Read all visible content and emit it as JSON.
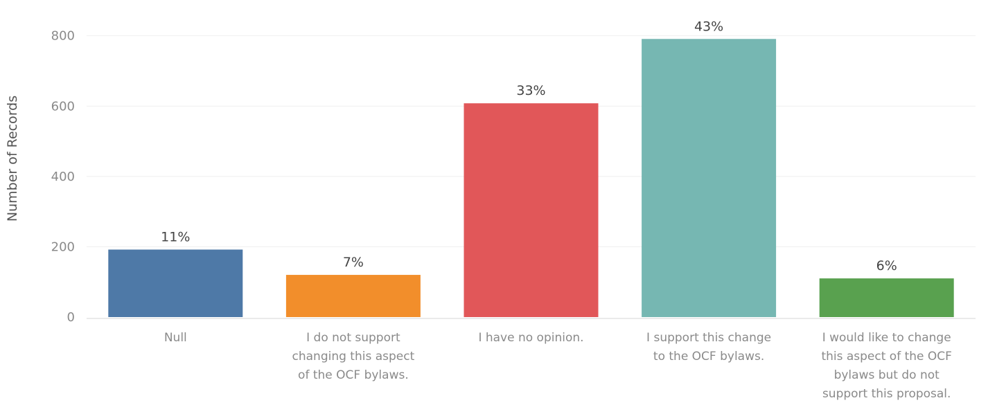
{
  "chart_data": {
    "type": "bar",
    "title": "",
    "xlabel": "",
    "ylabel": "Number of Records",
    "ylim": [
      0,
      800
    ],
    "yticks": [
      0,
      200,
      400,
      600,
      800
    ],
    "grid": true,
    "categories": [
      [
        "Null"
      ],
      [
        "I do not support",
        "changing this aspect",
        "of the OCF bylaws."
      ],
      [
        "I have no opinion."
      ],
      [
        "I support this change",
        "to the OCF bylaws."
      ],
      [
        "I would like to change",
        "this aspect of the OCF",
        "bylaws but do not",
        "support this proposal."
      ]
    ],
    "values": [
      192,
      120,
      608,
      791,
      110
    ],
    "data_labels": [
      "11%",
      "7%",
      "33%",
      "43%",
      "6%"
    ],
    "colors": [
      "#4e79a7",
      "#f28e2b",
      "#e15759",
      "#76b7b2",
      "#59a14f"
    ]
  }
}
